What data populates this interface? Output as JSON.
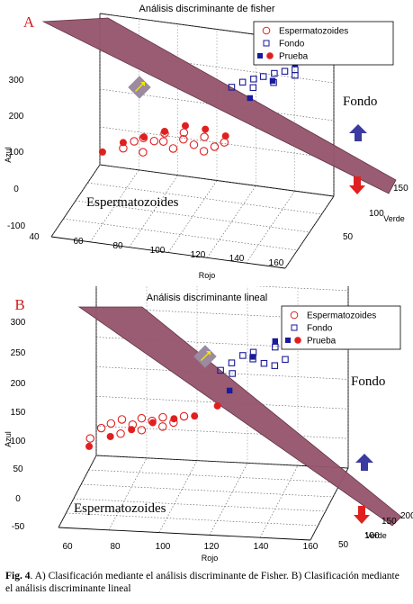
{
  "caption": {
    "label": "Fig. 4",
    "text": ". A) Clasificación mediante el análisis discriminante de Fisher. B) Clasificación mediante el análisis discriminante lineal"
  },
  "colors": {
    "plane": "#96566e",
    "plane_edge": "#5a2a3c",
    "espermatozoides": "#e02020",
    "fondo": "#1a1a9a",
    "arrow_blue": "#3a3aa0",
    "arrow_red": "#e02020",
    "arrow_yellow": "#f5e600"
  },
  "chart_data": [
    {
      "type": "scatter",
      "panel_label": "A",
      "title": "Análisis discriminante de fisher",
      "xlabel": "Rojo",
      "ylabel": "Verde",
      "zlabel": "Azul",
      "x_ticks": [
        "40",
        "60",
        "80",
        "100",
        "120",
        "140",
        "160"
      ],
      "y_ticks": [
        "50",
        "100",
        "150"
      ],
      "z_ticks": [
        "-100",
        "0",
        "100",
        "200",
        "300"
      ],
      "grid": true,
      "legend_position": "top-right",
      "legend": [
        "Espermatozoides",
        "Fondo",
        "Prueba"
      ],
      "annotations": [
        "Fondo",
        "Espermatozoides"
      ],
      "series": [
        {
          "name": "Espermatozoides",
          "marker": "open-circle",
          "points": [
            [
              70,
              85,
              80
            ],
            [
              75,
              90,
              95
            ],
            [
              80,
              88,
              110
            ],
            [
              85,
              92,
              100
            ],
            [
              90,
              95,
              120
            ],
            [
              95,
              90,
              90
            ],
            [
              100,
              92,
              115
            ],
            [
              105,
              95,
              100
            ],
            [
              110,
              98,
              120
            ],
            [
              115,
              100,
              95
            ],
            [
              120,
              100,
              110
            ],
            [
              80,
              86,
              75
            ],
            [
              90,
              90,
              105
            ],
            [
              100,
              94,
              130
            ],
            [
              110,
              96,
              85
            ]
          ]
        },
        {
          "name": "Fondo",
          "marker": "open-square",
          "points": [
            [
              120,
              130,
              215
            ],
            [
              125,
              135,
              225
            ],
            [
              130,
              140,
              230
            ],
            [
              135,
              140,
              240
            ],
            [
              140,
              145,
              245
            ],
            [
              145,
              148,
              250
            ],
            [
              150,
              150,
              255
            ],
            [
              130,
              138,
              210
            ],
            [
              140,
              142,
              225
            ],
            [
              150,
              150,
              240
            ]
          ]
        },
        {
          "name": "Prueba",
          "marker": "filled",
          "points": [
            [
              60,
              80,
              70
            ],
            [
              70,
              85,
              95
            ],
            [
              80,
              90,
              110
            ],
            [
              90,
              95,
              125
            ],
            [
              100,
              100,
              140
            ],
            [
              110,
              102,
              135
            ],
            [
              120,
              105,
              120
            ],
            [
              130,
              125,
              200
            ],
            [
              140,
              138,
              235
            ],
            [
              150,
              150,
              270
            ]
          ]
        }
      ]
    },
    {
      "type": "scatter",
      "panel_label": "B",
      "title": "Análisis discriminante lineal",
      "xlabel": "Rojo",
      "ylabel": "Verde",
      "zlabel": "Azul",
      "x_ticks": [
        "60",
        "80",
        "100",
        "120",
        "140",
        "160"
      ],
      "y_ticks": [
        "50",
        "100",
        "150",
        "200"
      ],
      "z_ticks": [
        "-50",
        "0",
        "50",
        "100",
        "150",
        "200",
        "250",
        "300"
      ],
      "grid": true,
      "legend_position": "top-right",
      "legend": [
        "Espermatozoides",
        "Fondo",
        "Prueba"
      ],
      "annotations": [
        "Fondo",
        "Espermatozoides"
      ],
      "series": [
        {
          "name": "Espermatozoides",
          "marker": "open-circle",
          "points": [
            [
              65,
              85,
              65
            ],
            [
              70,
              90,
              80
            ],
            [
              75,
              88,
              90
            ],
            [
              80,
              92,
              95
            ],
            [
              85,
              95,
              85
            ],
            [
              90,
              90,
              80
            ],
            [
              95,
              92,
              95
            ],
            [
              100,
              95,
              100
            ],
            [
              105,
              98,
              90
            ],
            [
              110,
              100,
              100
            ],
            [
              80,
              86,
              75
            ],
            [
              90,
              90,
              100
            ],
            [
              100,
              94,
              85
            ]
          ]
        },
        {
          "name": "Fondo",
          "marker": "open-square",
          "points": [
            [
              125,
              130,
              160
            ],
            [
              130,
              135,
              170
            ],
            [
              135,
              140,
              180
            ],
            [
              140,
              140,
              175
            ],
            [
              145,
              145,
              165
            ],
            [
              150,
              148,
              160
            ],
            [
              155,
              150,
              170
            ],
            [
              130,
              138,
              150
            ],
            [
              140,
              142,
              185
            ],
            [
              150,
              150,
              190
            ]
          ]
        },
        {
          "name": "Prueba",
          "marker": "filled",
          "points": [
            [
              65,
              80,
              55
            ],
            [
              75,
              85,
              70
            ],
            [
              85,
              90,
              80
            ],
            [
              95,
              95,
              90
            ],
            [
              105,
              100,
              95
            ],
            [
              115,
              102,
              100
            ],
            [
              125,
              115,
              110
            ],
            [
              130,
              125,
              130
            ],
            [
              140,
              138,
              180
            ],
            [
              150,
              150,
              200
            ]
          ]
        }
      ]
    }
  ]
}
